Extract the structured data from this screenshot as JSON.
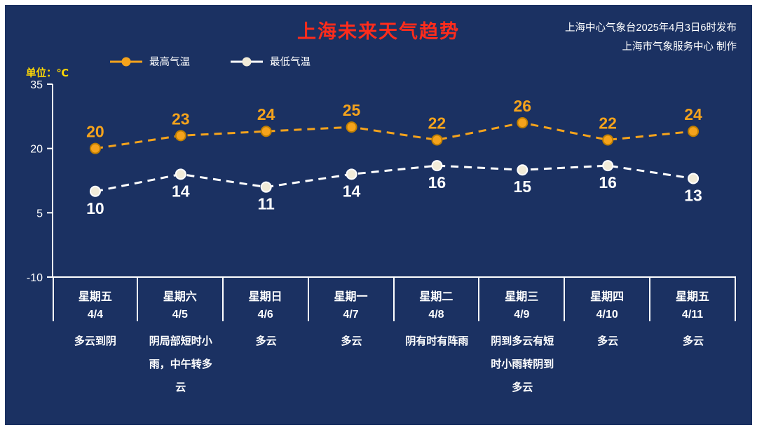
{
  "page": {
    "title": "上海未来天气趋势",
    "source_line1": "上海中心气象台2025年4月3日6时发布",
    "source_line2": "上海市气象服务中心 制作",
    "unit_label": "单位：℃"
  },
  "legend": {
    "high": "最高气温",
    "low": "最低气温"
  },
  "colors": {
    "background": "#1b3162",
    "frame": "#ffffff",
    "title": "#fe2c1c",
    "unit": "#ffd803",
    "axis": "#ffffff",
    "high": "#f5a31c",
    "high_marker_stroke": "#c07f00",
    "low_line": "#ffffff",
    "low_marker": "#f1ebd8",
    "value_low_label": "#ffffff"
  },
  "chart_data": {
    "type": "line",
    "title": "上海未来天气趋势",
    "unit": "℃",
    "ylim": [
      -10,
      35
    ],
    "yticks": [
      35,
      20,
      5,
      -10
    ],
    "grid": false,
    "legend_position": "top-left",
    "line_style": "dashed",
    "categories": [
      "星期五 4/4",
      "星期六 4/5",
      "星期日 4/6",
      "星期一 4/7",
      "星期二 4/8",
      "星期三 4/9",
      "星期四 4/10",
      "星期五 4/11"
    ],
    "series": [
      {
        "name": "最高气温",
        "color": "#f5a31c",
        "values": [
          20,
          23,
          24,
          25,
          22,
          26,
          22,
          24
        ]
      },
      {
        "name": "最低气温",
        "color": "#ffffff",
        "values": [
          10,
          14,
          11,
          14,
          16,
          15,
          16,
          13
        ]
      }
    ]
  },
  "days": [
    {
      "weekday": "星期五",
      "date": "4/4",
      "weather": "多云到阴"
    },
    {
      "weekday": "星期六",
      "date": "4/5",
      "weather": "阴局部短时小雨，中午转多云"
    },
    {
      "weekday": "星期日",
      "date": "4/6",
      "weather": "多云"
    },
    {
      "weekday": "星期一",
      "date": "4/7",
      "weather": "多云"
    },
    {
      "weekday": "星期二",
      "date": "4/8",
      "weather": "阴有时有阵雨"
    },
    {
      "weekday": "星期三",
      "date": "4/9",
      "weather": "阴到多云有短时小雨转阴到多云"
    },
    {
      "weekday": "星期四",
      "date": "4/10",
      "weather": "多云"
    },
    {
      "weekday": "星期五",
      "date": "4/11",
      "weather": "多云"
    }
  ]
}
